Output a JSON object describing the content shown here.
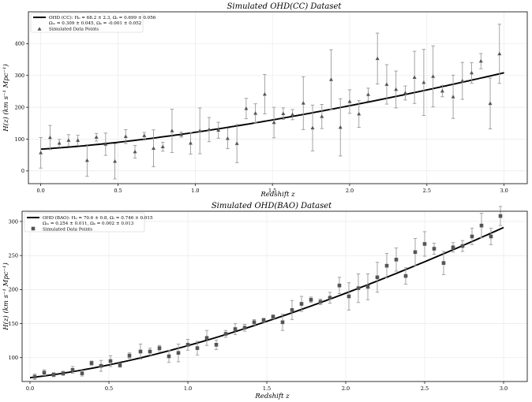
{
  "chart_data": [
    {
      "type": "scatter",
      "title": "Simulated OHD(CC) Dataset",
      "xlabel": "Redshift z",
      "ylabel": "H(z) (km s⁻¹ Mpc⁻¹)",
      "xlim": [
        -0.08,
        3.15
      ],
      "ylim": [
        -40,
        500
      ],
      "xticks": [
        0.0,
        0.5,
        1.0,
        1.5,
        2.0,
        2.5,
        3.0
      ],
      "yticks": [
        0,
        100,
        200,
        300,
        400
      ],
      "grid": true,
      "legend_position": "top-left",
      "legend": {
        "line_lines": [
          "OHD (CC): H₀ = 68.2 ± 2.3, Ωₗ = 0.699 ± 0.056",
          "Ωₘ = 0.309 ± 0.045, Ωₖ = -0.001 ± 0.052"
        ],
        "points": "Simulated Data Points"
      },
      "marker": "triangle",
      "fit_curve": {
        "H0": 68.2,
        "Om": 0.309,
        "OL": 0.699,
        "Ok": -0.001
      },
      "points": [
        [
          0.0,
          57,
          48
        ],
        [
          0.06,
          105,
          38
        ],
        [
          0.12,
          87,
          12
        ],
        [
          0.18,
          96,
          18
        ],
        [
          0.24,
          96,
          16
        ],
        [
          0.3,
          33,
          50
        ],
        [
          0.36,
          106,
          12
        ],
        [
          0.42,
          84,
          35
        ],
        [
          0.48,
          30,
          55
        ],
        [
          0.55,
          108,
          22
        ],
        [
          0.61,
          60,
          20
        ],
        [
          0.67,
          111,
          10
        ],
        [
          0.73,
          71,
          58
        ],
        [
          0.79,
          76,
          14
        ],
        [
          0.85,
          126,
          68
        ],
        [
          0.91,
          114,
          8
        ],
        [
          0.97,
          87,
          34
        ],
        [
          1.03,
          126,
          72
        ],
        [
          1.09,
          130,
          38
        ],
        [
          1.15,
          128,
          25
        ],
        [
          1.21,
          102,
          32
        ],
        [
          1.27,
          86,
          60
        ],
        [
          1.33,
          196,
          32
        ],
        [
          1.39,
          181,
          30
        ],
        [
          1.45,
          241,
          62
        ],
        [
          1.51,
          152,
          48
        ],
        [
          1.57,
          180,
          18
        ],
        [
          1.63,
          177,
          16
        ],
        [
          1.7,
          213,
          83
        ],
        [
          1.76,
          135,
          72
        ],
        [
          1.82,
          171,
          38
        ],
        [
          1.88,
          287,
          94
        ],
        [
          1.94,
          137,
          90
        ],
        [
          2.0,
          218,
          37
        ],
        [
          2.06,
          179,
          42
        ],
        [
          2.12,
          240,
          20
        ],
        [
          2.18,
          353,
          80
        ],
        [
          2.24,
          272,
          62
        ],
        [
          2.3,
          256,
          58
        ],
        [
          2.36,
          245,
          22
        ],
        [
          2.42,
          294,
          82
        ],
        [
          2.48,
          278,
          104
        ],
        [
          2.54,
          297,
          96
        ],
        [
          2.6,
          251,
          18
        ],
        [
          2.67,
          233,
          68
        ],
        [
          2.73,
          283,
          58
        ],
        [
          2.79,
          308,
          32
        ],
        [
          2.85,
          345,
          24
        ],
        [
          2.91,
          212,
          80
        ],
        [
          2.97,
          368,
          93
        ]
      ]
    },
    {
      "type": "scatter",
      "title": "Simulated OHD(BAO) Dataset",
      "xlabel": "Redshift z",
      "ylabel": "H(z) (km s⁻¹ Mpc⁻¹)",
      "xlim": [
        -0.05,
        3.15
      ],
      "ylim": [
        65,
        315
      ],
      "xticks": [
        0.0,
        0.5,
        1.0,
        1.5,
        2.0,
        2.5,
        3.0
      ],
      "yticks": [
        100,
        150,
        200,
        250,
        300
      ],
      "grid": true,
      "legend_position": "top-left",
      "legend": {
        "line_lines": [
          "OHD (BAO): H₀ = 70.6 ± 0.8, Ωₗ = 0.746 ± 0.015",
          "Ωₘ = 0.254 ± 0.011, Ωₖ = 0.002 ± 0.013"
        ],
        "points": "Simulated Data Points"
      },
      "marker": "square",
      "fit_curve": {
        "H0": 70.6,
        "Om": 0.254,
        "OL": 0.746,
        "Ok": 0.0
      },
      "points": [
        [
          0.03,
          72,
          4
        ],
        [
          0.09,
          78,
          4
        ],
        [
          0.15,
          75,
          3
        ],
        [
          0.21,
          77,
          3
        ],
        [
          0.27,
          82,
          5
        ],
        [
          0.33,
          77,
          4
        ],
        [
          0.39,
          92,
          3
        ],
        [
          0.45,
          88,
          8
        ],
        [
          0.51,
          95,
          8
        ],
        [
          0.57,
          89,
          3
        ],
        [
          0.63,
          103,
          4
        ],
        [
          0.7,
          109,
          11
        ],
        [
          0.76,
          109,
          5
        ],
        [
          0.82,
          114,
          4
        ],
        [
          0.88,
          102,
          9
        ],
        [
          0.94,
          107,
          13
        ],
        [
          1.0,
          119,
          8
        ],
        [
          1.06,
          114,
          10
        ],
        [
          1.12,
          129,
          11
        ],
        [
          1.18,
          119,
          7
        ],
        [
          1.24,
          135,
          5
        ],
        [
          1.3,
          142,
          8
        ],
        [
          1.36,
          144,
          5
        ],
        [
          1.42,
          152,
          4
        ],
        [
          1.48,
          155,
          3
        ],
        [
          1.54,
          160,
          3
        ],
        [
          1.6,
          152,
          12
        ],
        [
          1.66,
          170,
          14
        ],
        [
          1.72,
          179,
          11
        ],
        [
          1.78,
          185,
          4
        ],
        [
          1.84,
          182,
          4
        ],
        [
          1.9,
          188,
          8
        ],
        [
          1.96,
          206,
          12
        ],
        [
          2.02,
          190,
          20
        ],
        [
          2.08,
          202,
          21
        ],
        [
          2.14,
          204,
          19
        ],
        [
          2.2,
          218,
          22
        ],
        [
          2.26,
          235,
          18
        ],
        [
          2.32,
          244,
          17
        ],
        [
          2.38,
          220,
          12
        ],
        [
          2.44,
          255,
          20
        ],
        [
          2.5,
          267,
          18
        ],
        [
          2.56,
          260,
          8
        ],
        [
          2.62,
          239,
          17
        ],
        [
          2.68,
          262,
          7
        ],
        [
          2.74,
          264,
          8
        ],
        [
          2.8,
          278,
          12
        ],
        [
          2.86,
          294,
          18
        ],
        [
          2.92,
          278,
          12
        ],
        [
          2.98,
          308,
          14
        ]
      ]
    }
  ]
}
